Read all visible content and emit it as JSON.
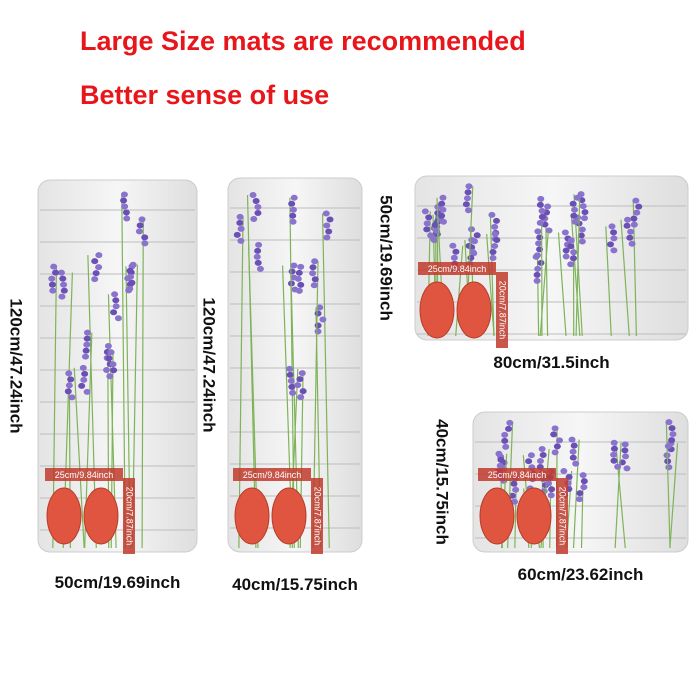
{
  "header": {
    "line1": "Large Size mats are recommended",
    "line2": "Better sense of use"
  },
  "mats": [
    {
      "width_label": "50cm/19.69inch",
      "height_label": "120cm/47.24inch",
      "slipper_width_label": "25cm/9.84inch",
      "slipper_length_label": "20cm/7.87inch"
    },
    {
      "width_label": "40cm/15.75inch",
      "height_label": "120cm/47.24inch",
      "slipper_width_label": "25cm/9.84inch",
      "slipper_length_label": "20cm/7.87inch"
    },
    {
      "width_label": "80cm/31.5inch",
      "height_label": "50cm/19.69inch",
      "slipper_width_label": "25cm/9.84inch",
      "slipper_length_label": "20cm/7.87inch"
    },
    {
      "width_label": "60cm/23.62inch",
      "height_label": "40cm/15.75inch",
      "slipper_width_label": "25cm/9.84inch",
      "slipper_length_label": "20cm/7.87inch"
    }
  ]
}
